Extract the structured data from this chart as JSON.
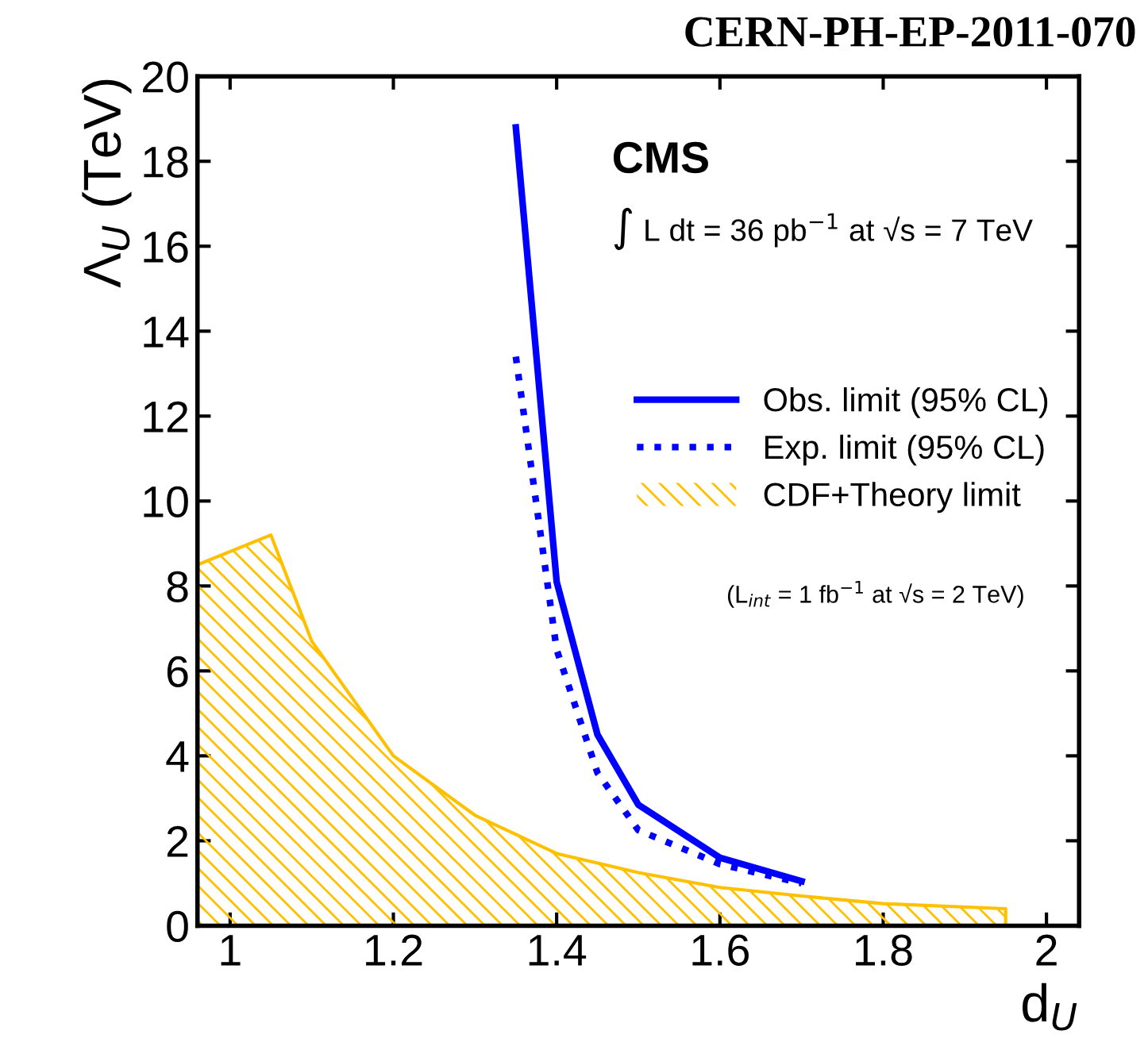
{
  "chart_data": {
    "type": "line",
    "xlabel": "d$_{U}$",
    "ylabel": "Λ$_{U}$ (TeV)",
    "xlim": [
      0.96,
      2.04
    ],
    "ylim": [
      0,
      20
    ],
    "xticks": [
      1,
      1.2,
      1.4,
      1.6,
      1.8,
      2
    ],
    "yticks": [
      0,
      2,
      4,
      6,
      8,
      10,
      12,
      14,
      16,
      18,
      20
    ],
    "grid": false,
    "legend": "right",
    "marker": "none",
    "annotations": [
      "CERN-PH-EP-2011-070",
      "CMS",
      "∫ L dt = 36 pb$^{−1}$ at √s = 7 TeV",
      "(L$_{int}$ = 1 fb$^{−1}$ at √s = 2 TeV)"
    ],
    "series": [
      {
        "name": "Obs. limit (95% CL)",
        "color": "#0000ff",
        "line_style": "solid",
        "x": [
          1.35,
          1.4,
          1.45,
          1.5,
          1.6,
          1.7
        ],
        "values": [
          18.8,
          8.1,
          4.5,
          2.85,
          1.6,
          1.05
        ]
      },
      {
        "name": "Exp. limit (95% CL)",
        "color": "#0000ff",
        "line_style": "dotted",
        "x": [
          1.35,
          1.4,
          1.45,
          1.5,
          1.6,
          1.7
        ],
        "values": [
          13.4,
          6.5,
          3.6,
          2.25,
          1.45,
          1.0
        ]
      },
      {
        "name": "CDF+Theory limit",
        "type": "area",
        "color": "#ffc000",
        "x": [
          0.96,
          1.05,
          1.1,
          1.2,
          1.3,
          1.4,
          1.5,
          1.6,
          1.7,
          1.8,
          1.95
        ],
        "values": [
          8.5,
          9.2,
          6.7,
          4.0,
          2.6,
          1.7,
          1.25,
          0.9,
          0.7,
          0.52,
          0.4
        ]
      }
    ]
  }
}
